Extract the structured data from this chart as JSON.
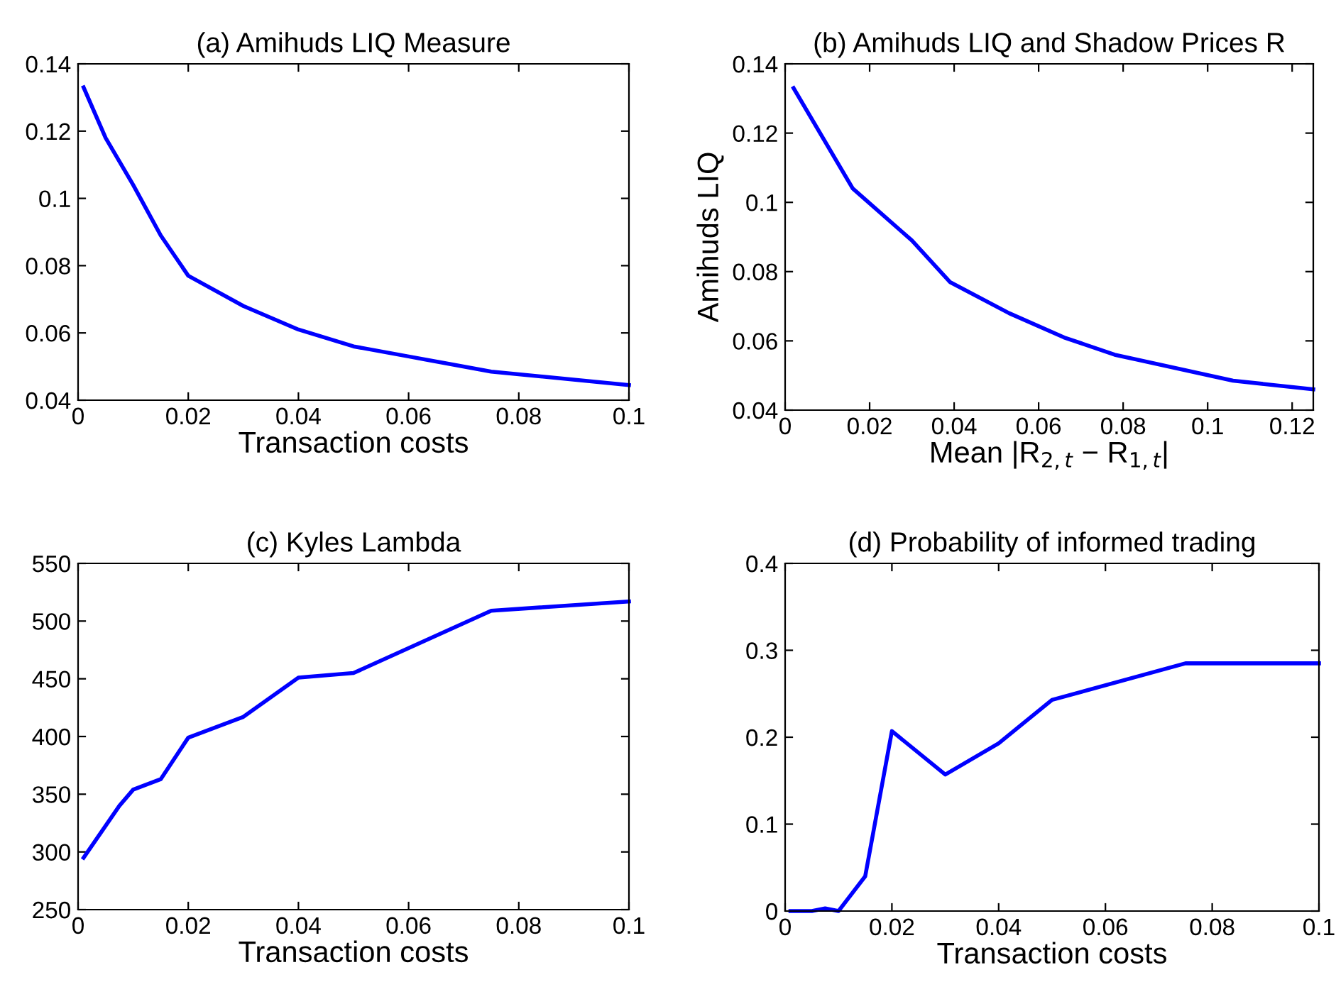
{
  "chart_data": [
    {
      "type": "line",
      "title": "(a) Amihuds LIQ Measure",
      "xlabel": "Transaction costs",
      "x": [
        0.001,
        0.005,
        0.01,
        0.015,
        0.02,
        0.03,
        0.04,
        0.05,
        0.06,
        0.075,
        0.1
      ],
      "series": [
        {
          "color": "#0000ff",
          "values": [
            0.133,
            0.118,
            0.104,
            0.089,
            0.077,
            0.068,
            0.061,
            0.056,
            0.053,
            0.0485,
            0.0445
          ]
        }
      ],
      "xlim": [
        0,
        0.1
      ],
      "xticks": [
        0,
        0.02,
        0.04,
        0.06,
        0.08,
        0.1
      ],
      "ylim": [
        0.04,
        0.14
      ],
      "yticks": [
        0.04,
        0.06,
        0.08,
        0.1,
        0.12,
        0.14
      ],
      "grid": false,
      "legend": false,
      "marker": "none",
      "line_style": "solid"
    },
    {
      "type": "line",
      "title": "(b) Amihuds LIQ and Shadow Prices R",
      "xlabel": "Mean |R$_{2,t}$ − R$_{1,t}$|",
      "ylabel": "Amihuds LIQ",
      "x": [
        0.002,
        0.016,
        0.03,
        0.039,
        0.053,
        0.066,
        0.078,
        0.106,
        0.125
      ],
      "series": [
        {
          "color": "#0000ff",
          "values": [
            0.133,
            0.104,
            0.089,
            0.077,
            0.068,
            0.061,
            0.056,
            0.0485,
            0.046
          ]
        }
      ],
      "xlim": [
        0,
        0.125
      ],
      "xticks": [
        0,
        0.02,
        0.04,
        0.06,
        0.08,
        0.1,
        0.12
      ],
      "ylim": [
        0.04,
        0.14
      ],
      "yticks": [
        0.04,
        0.06,
        0.08,
        0.1,
        0.12,
        0.14
      ],
      "grid": false,
      "legend": false,
      "marker": "none",
      "line_style": "solid"
    },
    {
      "type": "line",
      "title": "(c) Kyles Lambda",
      "xlabel": "Transaction costs",
      "x": [
        0.001,
        0.0075,
        0.01,
        0.015,
        0.02,
        0.03,
        0.04,
        0.05,
        0.075,
        0.1
      ],
      "series": [
        {
          "color": "#0000ff",
          "values": [
            295,
            340,
            354,
            363,
            399,
            417,
            451,
            455,
            509,
            517
          ]
        }
      ],
      "xlim": [
        0,
        0.1
      ],
      "xticks": [
        0,
        0.02,
        0.04,
        0.06,
        0.08,
        0.1
      ],
      "ylim": [
        250,
        550
      ],
      "yticks": [
        250,
        300,
        350,
        400,
        450,
        500,
        550
      ],
      "grid": false,
      "legend": false,
      "marker": "none",
      "line_style": "solid"
    },
    {
      "type": "line",
      "title": "(d) Probability of informed trading",
      "xlabel": "Transaction costs",
      "x": [
        0.001,
        0.005,
        0.0075,
        0.01,
        0.015,
        0.02,
        0.03,
        0.04,
        0.05,
        0.075,
        0.1
      ],
      "series": [
        {
          "color": "#0000ff",
          "values": [
            0,
            0,
            0.003,
            0,
            0.04,
            0.207,
            0.157,
            0.193,
            0.243,
            0.285,
            0.285
          ]
        }
      ],
      "xlim": [
        0,
        0.1
      ],
      "xticks": [
        0,
        0.02,
        0.04,
        0.06,
        0.08,
        0.1
      ],
      "ylim": [
        0,
        0.4
      ],
      "yticks": [
        0,
        0.1,
        0.2,
        0.3,
        0.4
      ],
      "grid": false,
      "legend": false,
      "marker": "none",
      "line_style": "solid"
    }
  ]
}
